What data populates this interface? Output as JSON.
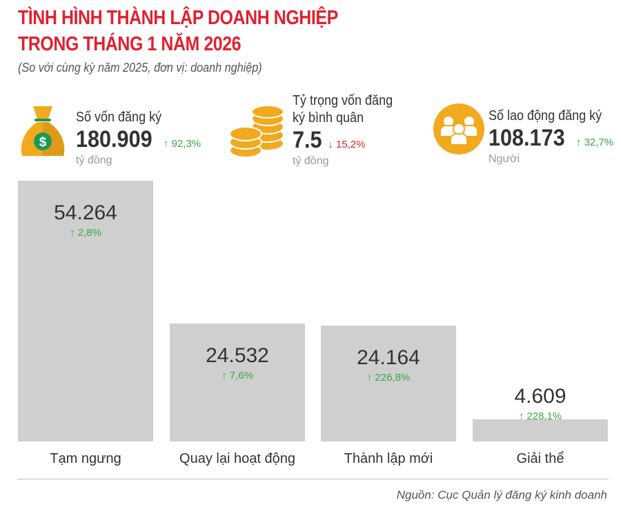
{
  "title_line1": "TÌNH HÌNH THÀNH LẬP DOANH NGHIỆP",
  "title_line2": "TRONG THÁNG 1 NĂM 2026",
  "subtitle": "(So với cùng kỳ năm 2025, đơn vị: doanh nghiệp)",
  "stats": [
    {
      "label": "Số vốn đăng ký",
      "value": "180.909",
      "change": "92,3%",
      "direction": "up",
      "unit": "tỷ đồng",
      "icon": "money-bag-icon"
    },
    {
      "label_line1": "Tỷ trọng vốn đăng",
      "label_line2": "ký bình quân",
      "value": "7.5",
      "change": "15,2%",
      "direction": "down",
      "unit": "tỷ đồng",
      "icon": "coins-icon"
    },
    {
      "label": "Số lao động đăng ký",
      "value": "108.173",
      "change": "32,7%",
      "direction": "up",
      "unit": "Người",
      "icon": "people-icon"
    }
  ],
  "colors": {
    "title": "#e0212f",
    "up": "#3aa845",
    "down": "#e0212f",
    "bar": "#cfcfcf",
    "icon": "#f2a91d"
  },
  "chart_data": {
    "type": "bar",
    "categories": [
      "Tạm ngưng",
      "Quay lại hoạt động",
      "Thành lập mới",
      "Giải thể"
    ],
    "values": [
      54264,
      24532,
      24164,
      4609
    ],
    "value_labels": [
      "54.264",
      "24.532",
      "24.164",
      "4.609"
    ],
    "changes": [
      "2,8%",
      "7,6%",
      "226,8%",
      "228,1%"
    ],
    "change_direction": [
      "up",
      "up",
      "up",
      "up"
    ],
    "grid": false
  },
  "source": "Nguồn: Cục Quản lý đăng ký kinh doanh"
}
